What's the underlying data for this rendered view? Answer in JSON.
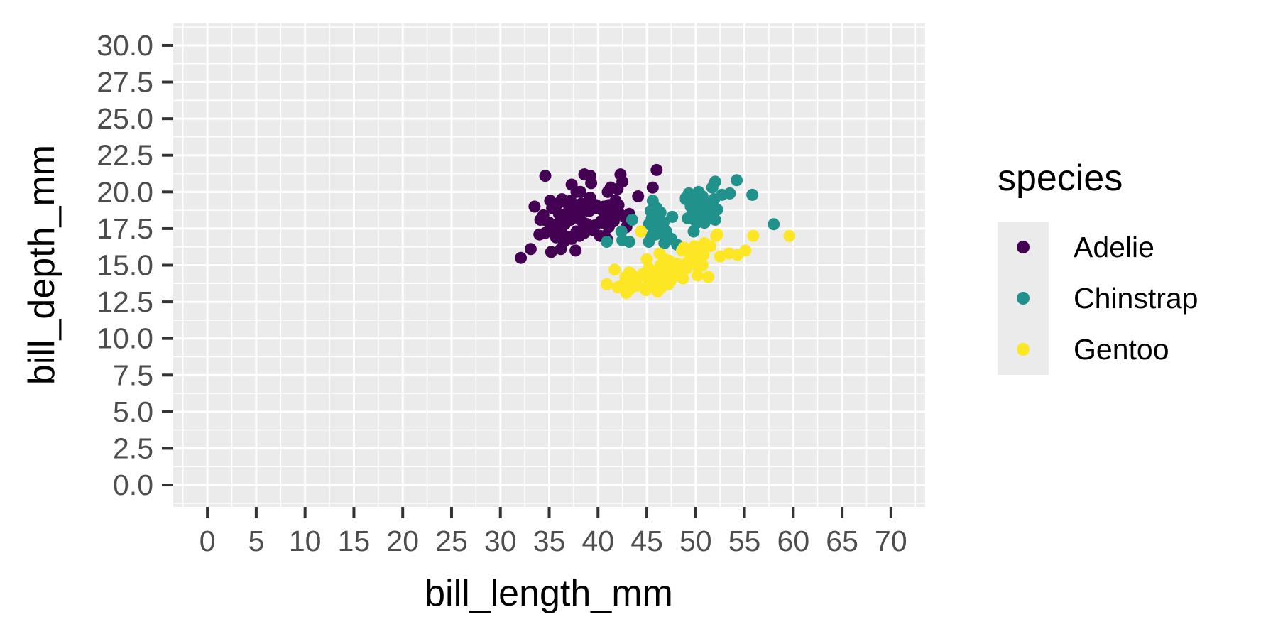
{
  "chart_data": {
    "type": "scatter",
    "title": "",
    "xlabel": "bill_length_mm",
    "ylabel": "bill_depth_mm",
    "xlim": [
      -3.5,
      73.5
    ],
    "ylim": [
      -1.5,
      31.5
    ],
    "x_ticks": [
      0,
      5,
      10,
      15,
      20,
      25,
      30,
      35,
      40,
      45,
      50,
      55,
      60,
      65,
      70
    ],
    "x_tick_labels": [
      "0",
      "5",
      "10",
      "15",
      "20",
      "25",
      "30",
      "35",
      "40",
      "45",
      "50",
      "55",
      "60",
      "65",
      "70"
    ],
    "y_ticks": [
      0,
      2.5,
      5,
      7.5,
      10,
      12.5,
      15,
      17.5,
      20,
      22.5,
      25,
      27.5,
      30
    ],
    "y_tick_labels": [
      "0.0",
      "2.5",
      "5.0",
      "7.5",
      "10.0",
      "12.5",
      "15.0",
      "17.5",
      "20.0",
      "22.5",
      "25.0",
      "27.5",
      "30.0"
    ],
    "grid": true,
    "legend": {
      "title": "species",
      "placement": "right"
    },
    "series": [
      {
        "name": "Adelie",
        "color": "#440154",
        "points": [
          [
            32.1,
            15.5
          ],
          [
            33.1,
            16.1
          ],
          [
            33.5,
            19.0
          ],
          [
            34.0,
            17.1
          ],
          [
            34.1,
            18.1
          ],
          [
            34.4,
            18.4
          ],
          [
            34.5,
            18.1
          ],
          [
            34.6,
            21.1
          ],
          [
            34.6,
            17.2
          ],
          [
            35.0,
            17.9
          ],
          [
            35.1,
            19.4
          ],
          [
            35.2,
            15.9
          ],
          [
            35.3,
            18.9
          ],
          [
            35.5,
            17.5
          ],
          [
            35.6,
            17.5
          ],
          [
            35.7,
            16.9
          ],
          [
            35.9,
            19.2
          ],
          [
            36.0,
            17.9
          ],
          [
            36.0,
            18.5
          ],
          [
            36.2,
            16.1
          ],
          [
            36.2,
            17.2
          ],
          [
            36.3,
            19.5
          ],
          [
            36.4,
            17.0
          ],
          [
            36.5,
            16.6
          ],
          [
            36.6,
            17.8
          ],
          [
            36.7,
            19.3
          ],
          [
            36.8,
            18.5
          ],
          [
            36.9,
            18.6
          ],
          [
            37.0,
            16.9
          ],
          [
            37.2,
            18.1
          ],
          [
            37.2,
            19.4
          ],
          [
            37.3,
            16.8
          ],
          [
            37.3,
            20.5
          ],
          [
            37.5,
            18.9
          ],
          [
            37.6,
            17.0
          ],
          [
            37.7,
            18.7
          ],
          [
            37.7,
            16.0
          ],
          [
            37.8,
            17.3
          ],
          [
            37.8,
            20.0
          ],
          [
            37.9,
            18.6
          ],
          [
            38.1,
            17.0
          ],
          [
            38.1,
            18.6
          ],
          [
            38.2,
            18.1
          ],
          [
            38.3,
            19.2
          ],
          [
            38.5,
            17.9
          ],
          [
            38.6,
            21.2
          ],
          [
            38.6,
            17.2
          ],
          [
            38.7,
            19.0
          ],
          [
            38.8,
            17.6
          ],
          [
            38.9,
            18.8
          ],
          [
            39.0,
            17.5
          ],
          [
            39.1,
            18.7
          ],
          [
            39.2,
            19.6
          ],
          [
            39.2,
            21.1
          ],
          [
            39.3,
            20.6
          ],
          [
            39.5,
            17.4
          ],
          [
            39.6,
            17.7
          ],
          [
            39.7,
            18.9
          ],
          [
            39.8,
            19.1
          ],
          [
            40.1,
            18.9
          ],
          [
            40.2,
            17.0
          ],
          [
            40.3,
            18.0
          ],
          [
            40.5,
            17.9
          ],
          [
            40.6,
            19.0
          ],
          [
            40.7,
            17.0
          ],
          [
            40.8,
            18.4
          ],
          [
            40.9,
            16.8
          ],
          [
            41.0,
            20.0
          ],
          [
            41.1,
            19.1
          ],
          [
            41.1,
            17.6
          ],
          [
            41.3,
            20.3
          ],
          [
            41.4,
            18.5
          ],
          [
            41.5,
            18.3
          ],
          [
            41.6,
            18.0
          ],
          [
            41.8,
            19.4
          ],
          [
            42.0,
            20.2
          ],
          [
            42.1,
            19.1
          ],
          [
            42.2,
            18.5
          ],
          [
            42.3,
            21.2
          ],
          [
            42.5,
            20.7
          ],
          [
            42.7,
            18.3
          ],
          [
            42.9,
            17.6
          ],
          [
            43.2,
            18.5
          ],
          [
            44.1,
            19.7
          ],
          [
            45.6,
            20.3
          ],
          [
            45.8,
            18.9
          ],
          [
            46.0,
            21.5
          ],
          [
            39.7,
            17.7
          ],
          [
            36.6,
            18.4
          ],
          [
            38.9,
            17.8
          ],
          [
            40.6,
            18.6
          ],
          [
            39.0,
            18.7
          ],
          [
            37.8,
            18.3
          ],
          [
            41.1,
            18.2
          ],
          [
            36.4,
            17.1
          ],
          [
            38.2,
            20.0
          ]
        ]
      },
      {
        "name": "Chinstrap",
        "color": "#21918c",
        "points": [
          [
            40.9,
            16.6
          ],
          [
            42.4,
            17.3
          ],
          [
            42.5,
            16.7
          ],
          [
            43.2,
            16.6
          ],
          [
            43.5,
            18.1
          ],
          [
            45.2,
            17.8
          ],
          [
            45.2,
            16.6
          ],
          [
            45.4,
            18.7
          ],
          [
            45.5,
            17.0
          ],
          [
            45.6,
            19.4
          ],
          [
            45.7,
            17.3
          ],
          [
            45.9,
            17.1
          ],
          [
            46.0,
            18.9
          ],
          [
            46.1,
            18.2
          ],
          [
            46.4,
            18.6
          ],
          [
            46.4,
            17.8
          ],
          [
            46.5,
            17.9
          ],
          [
            46.6,
            17.8
          ],
          [
            46.7,
            17.9
          ],
          [
            46.8,
            16.5
          ],
          [
            46.9,
            16.6
          ],
          [
            47.0,
            17.3
          ],
          [
            47.5,
            16.8
          ],
          [
            47.6,
            18.3
          ],
          [
            48.1,
            16.4
          ],
          [
            49.0,
            19.5
          ],
          [
            49.2,
            18.2
          ],
          [
            49.3,
            19.9
          ],
          [
            49.5,
            19.0
          ],
          [
            49.6,
            18.2
          ],
          [
            49.7,
            18.6
          ],
          [
            49.8,
            17.3
          ],
          [
            50.0,
            19.5
          ],
          [
            50.1,
            17.9
          ],
          [
            50.2,
            18.8
          ],
          [
            50.3,
            20.0
          ],
          [
            50.5,
            18.4
          ],
          [
            50.6,
            19.4
          ],
          [
            50.7,
            19.7
          ],
          [
            50.8,
            18.5
          ],
          [
            50.9,
            17.9
          ],
          [
            51.0,
            18.8
          ],
          [
            51.3,
            19.2
          ],
          [
            51.4,
            19.0
          ],
          [
            51.5,
            18.7
          ],
          [
            51.7,
            20.3
          ],
          [
            51.9,
            19.5
          ],
          [
            52.0,
            18.1
          ],
          [
            52.0,
            20.7
          ],
          [
            52.2,
            18.8
          ],
          [
            52.7,
            19.8
          ],
          [
            53.5,
            19.9
          ],
          [
            54.2,
            20.8
          ],
          [
            55.8,
            19.8
          ],
          [
            58.0,
            17.8
          ],
          [
            49.0,
            19.6
          ],
          [
            50.5,
            19.6
          ],
          [
            45.5,
            18.2
          ],
          [
            46.2,
            17.5
          ],
          [
            47.0,
            16.9
          ],
          [
            51.3,
            18.2
          ],
          [
            49.8,
            19.1
          ]
        ]
      },
      {
        "name": "Gentoo",
        "color": "#fde725",
        "points": [
          [
            40.9,
            13.7
          ],
          [
            41.7,
            14.7
          ],
          [
            42.0,
            13.5
          ],
          [
            42.6,
            13.7
          ],
          [
            42.7,
            13.7
          ],
          [
            42.8,
            14.2
          ],
          [
            42.9,
            13.1
          ],
          [
            43.2,
            14.5
          ],
          [
            43.3,
            13.4
          ],
          [
            43.4,
            14.4
          ],
          [
            43.5,
            14.2
          ],
          [
            43.6,
            13.9
          ],
          [
            43.8,
            13.9
          ],
          [
            44.0,
            13.6
          ],
          [
            44.4,
            17.3
          ],
          [
            44.5,
            14.3
          ],
          [
            44.9,
            13.3
          ],
          [
            45.0,
            15.4
          ],
          [
            45.1,
            14.5
          ],
          [
            45.2,
            13.8
          ],
          [
            45.2,
            14.8
          ],
          [
            45.3,
            13.7
          ],
          [
            45.4,
            14.6
          ],
          [
            45.5,
            13.9
          ],
          [
            45.7,
            13.9
          ],
          [
            45.8,
            14.6
          ],
          [
            46.1,
            13.2
          ],
          [
            46.2,
            14.5
          ],
          [
            46.3,
            15.8
          ],
          [
            46.4,
            15.0
          ],
          [
            46.5,
            14.5
          ],
          [
            46.6,
            14.2
          ],
          [
            46.8,
            15.4
          ],
          [
            46.9,
            14.6
          ],
          [
            47.2,
            13.7
          ],
          [
            47.3,
            15.3
          ],
          [
            47.4,
            14.6
          ],
          [
            47.5,
            14.0
          ],
          [
            47.6,
            14.5
          ],
          [
            47.7,
            15.0
          ],
          [
            47.8,
            15.0
          ],
          [
            48.1,
            15.1
          ],
          [
            48.2,
            14.3
          ],
          [
            48.4,
            14.4
          ],
          [
            48.5,
            15.0
          ],
          [
            48.6,
            16.0
          ],
          [
            48.7,
            14.1
          ],
          [
            48.8,
            16.2
          ],
          [
            49.0,
            16.1
          ],
          [
            49.1,
            14.8
          ],
          [
            49.2,
            15.2
          ],
          [
            49.4,
            15.8
          ],
          [
            49.5,
            16.1
          ],
          [
            49.6,
            16.0
          ],
          [
            49.8,
            15.9
          ],
          [
            50.0,
            15.2
          ],
          [
            50.1,
            15.0
          ],
          [
            50.2,
            14.3
          ],
          [
            50.4,
            15.3
          ],
          [
            50.5,
            15.9
          ],
          [
            50.7,
            15.0
          ],
          [
            50.8,
            15.7
          ],
          [
            51.1,
            16.3
          ],
          [
            51.3,
            14.2
          ],
          [
            51.5,
            16.3
          ],
          [
            52.1,
            17.0
          ],
          [
            52.2,
            17.1
          ],
          [
            52.5,
            15.6
          ],
          [
            53.4,
            15.8
          ],
          [
            54.3,
            15.7
          ],
          [
            55.1,
            16.0
          ],
          [
            55.9,
            17.0
          ],
          [
            59.6,
            17.0
          ],
          [
            46.5,
            13.5
          ],
          [
            47.0,
            14.9
          ],
          [
            48.0,
            14.6
          ],
          [
            45.9,
            14.0
          ],
          [
            44.6,
            14.4
          ],
          [
            50.9,
            16.5
          ],
          [
            49.9,
            16.3
          ]
        ]
      }
    ]
  }
}
